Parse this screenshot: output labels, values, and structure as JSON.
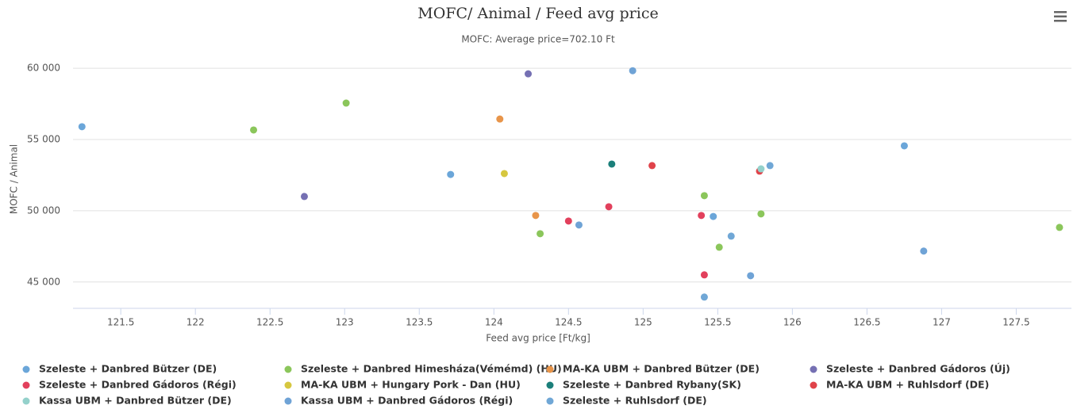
{
  "chart_data": {
    "type": "scatter",
    "title": "MOFC/ Animal / Feed avg price",
    "subtitle": "MOFC: Average price=702.10 Ft",
    "x_label": "Feed avg price [Ft/kg]",
    "y_label": "MOFC / Animal",
    "xlim": [
      121.18,
      127.87
    ],
    "ylim": [
      43150,
      60900
    ],
    "xticks": [
      121.5,
      122,
      122.5,
      123,
      123.5,
      124,
      124.5,
      125,
      125.5,
      126,
      126.5,
      127,
      127.5
    ],
    "yticks": [
      {
        "value": 45000,
        "label": "45 000"
      },
      {
        "value": 50000,
        "label": "50 000"
      },
      {
        "value": 55000,
        "label": "55 000"
      },
      {
        "value": 60000,
        "label": "60 000"
      }
    ],
    "grid": true,
    "series": [
      {
        "name": "Szeleste + Danbred Bützer (DE)",
        "color": "#6ba6d9",
        "x": [
          121.24,
          123.71,
          126.75,
          125.47
        ],
        "values": [
          55900,
          52550,
          54560,
          49600
        ]
      },
      {
        "name": "Szeleste + Danbred Himesháza(Vémémd) (HU)",
        "color": "#8bc65b",
        "x": [
          122.39,
          123.01,
          124.31,
          125.41,
          125.51,
          125.79,
          127.79
        ],
        "values": [
          55670,
          57560,
          48390,
          51060,
          47440,
          49780,
          48830
        ]
      },
      {
        "name": "MA-KA UBM + Danbred Bützer (DE)",
        "color": "#e8954a",
        "x": [
          124.04,
          124.28
        ],
        "values": [
          56440,
          49670
        ]
      },
      {
        "name": "Szeleste + Danbred Gádoros (Új)",
        "color": "#7570b3",
        "x": [
          124.23,
          122.73
        ],
        "values": [
          59610,
          51000
        ]
      },
      {
        "name": "Szeleste + Danbred Gádoros (Régi)",
        "color": "#e2405c",
        "x": [
          124.5,
          124.77,
          125.39,
          125.41
        ],
        "values": [
          49280,
          50280,
          49670,
          45500
        ]
      },
      {
        "name": "MA-KA UBM + Hungary Pork - Dan (HU)",
        "color": "#d6c73f",
        "x": [
          124.07
        ],
        "values": [
          52610
        ]
      },
      {
        "name": "Szeleste + Danbred Rybany(SK)",
        "color": "#1b7f7a",
        "x": [
          124.79
        ],
        "values": [
          53280
        ]
      },
      {
        "name": "MA-KA UBM + Ruhlsdorf (DE)",
        "color": "#e0434a",
        "x": [
          125.06,
          125.78
        ],
        "values": [
          53170,
          52780
        ]
      },
      {
        "name": "Kassa UBM + Danbred Bützer (DE)",
        "color": "#94d1cb",
        "x": [
          125.79
        ],
        "values": [
          52940
        ]
      },
      {
        "name": "Kassa UBM + Danbred Gádoros (Régi)",
        "color": "#6fa3d6",
        "x": [
          124.93,
          124.57,
          125.72,
          126.88
        ],
        "values": [
          59830,
          49000,
          45440,
          47170
        ]
      },
      {
        "name": "Szeleste + Ruhlsdorf (DE)",
        "color": "#70a7d6",
        "x": [
          125.59,
          125.41,
          125.85
        ],
        "values": [
          48220,
          43940,
          53170
        ]
      }
    ]
  }
}
